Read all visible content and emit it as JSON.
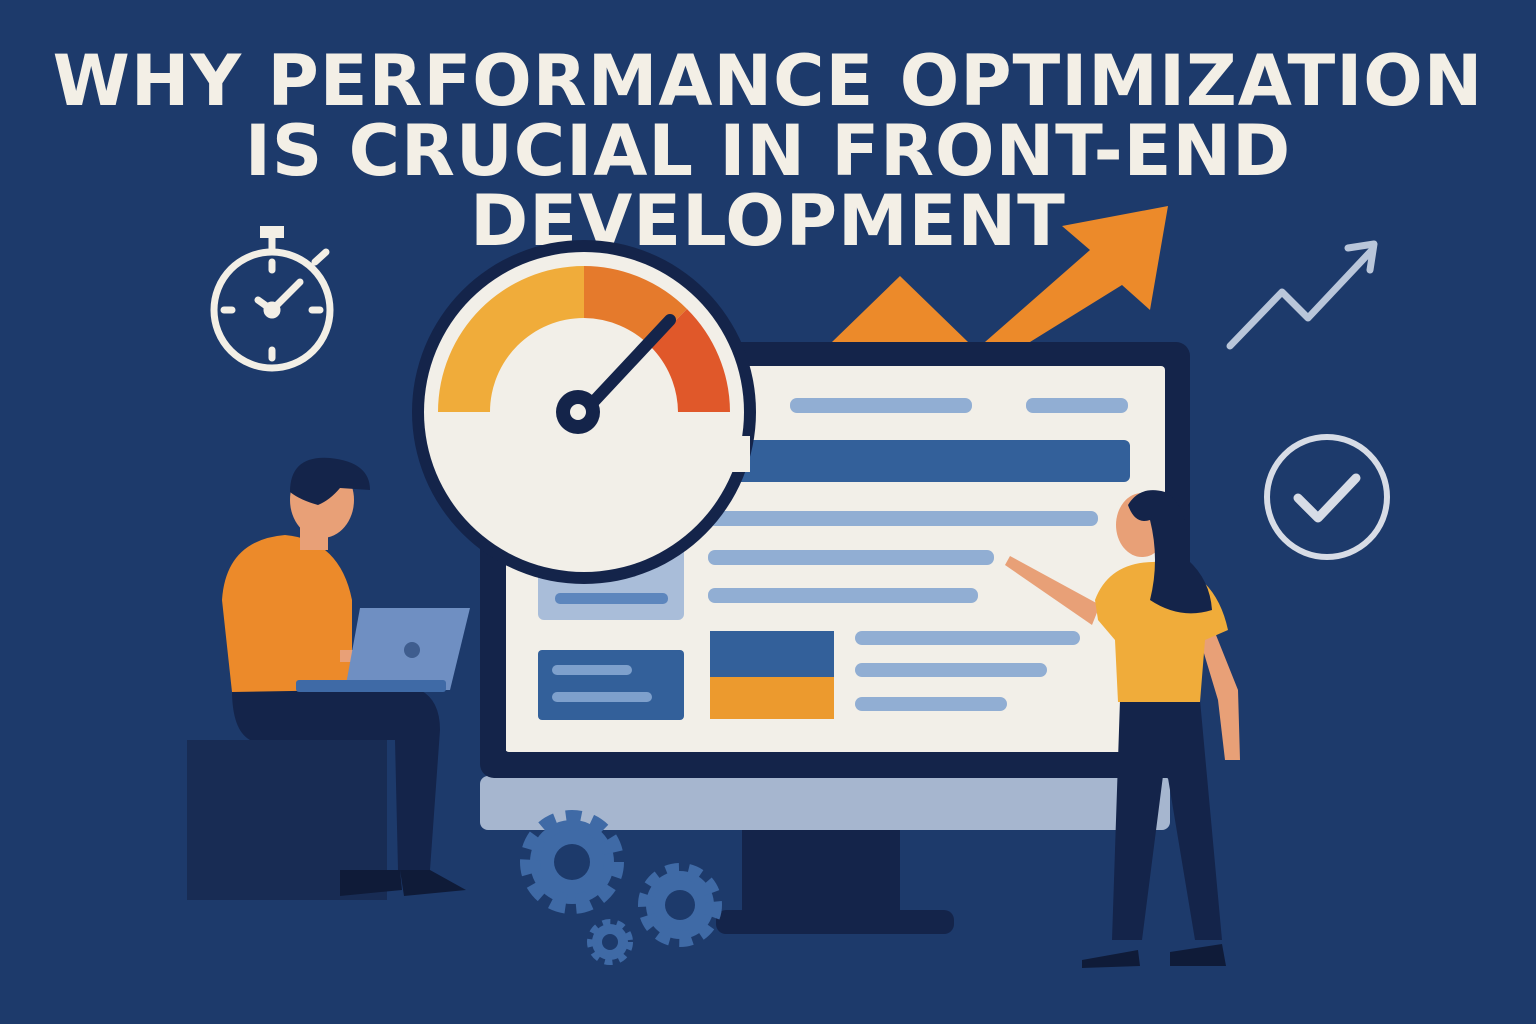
{
  "title": {
    "line1": "WHY PERFORMANCE OPTIMIZATION",
    "line2": "IS CRUCIAL IN FRONT-END DEVELOPMENT"
  },
  "colors": {
    "background": "#1d3a6b",
    "orange": "#ec8a2a",
    "yellow": "#f0ac3a",
    "red_orange": "#e0582a",
    "screen": "#f2efe8",
    "blue_bar": "#33609a",
    "light_bar": "#91aed3",
    "navy": "#14244a",
    "white": "#f3efe6"
  },
  "icons": [
    "stopwatch-icon",
    "speedometer-gauge",
    "growth-arrow-icon",
    "trend-line-arrow-icon",
    "checkmark-circle-icon",
    "gears-icon",
    "monitor",
    "laptop"
  ]
}
